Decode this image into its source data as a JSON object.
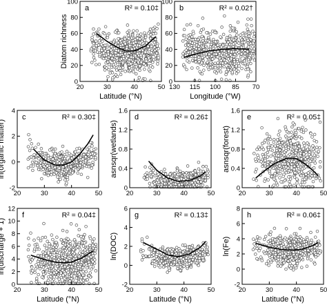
{
  "chart_data": [
    {
      "type": "scatter",
      "panel": "a",
      "r2": "R² = 0.10‡",
      "xlabel": "Latitude (°N)",
      "ylabel": "Diatom richness",
      "xlim": [
        20,
        50
      ],
      "ylim": [
        0,
        100
      ],
      "xticks": [
        20,
        30,
        40,
        50
      ],
      "yticks": [
        0,
        20,
        40,
        60,
        80,
        100
      ],
      "fit": {
        "x": [
          26,
          30,
          34,
          37,
          40,
          44,
          48
        ],
        "y": [
          60,
          50,
          42,
          38,
          38,
          44,
          56
        ]
      },
      "scatter": {
        "n": 700,
        "x_range": [
          24,
          49
        ],
        "center": 39,
        "spread": 8,
        "y_mean": [
          38,
          10
        ],
        "y_sd": 13
      }
    },
    {
      "type": "scatter",
      "panel": "b",
      "r2": "R² = 0.02†",
      "xlabel": "Longitude (°W)",
      "ylabel": "",
      "xlim": [
        130,
        70
      ],
      "ylim": [
        0,
        100
      ],
      "xticks": [
        130,
        115,
        100,
        85,
        70
      ],
      "yticks": [
        0,
        20,
        40,
        60,
        80,
        100
      ],
      "fit": {
        "x": [
          123,
          115,
          105,
          95,
          85,
          75
        ],
        "y": [
          30,
          34,
          38,
          40,
          41,
          40
        ]
      },
      "scatter": {
        "n": 600,
        "x_range": [
          124,
          71
        ],
        "center": 95,
        "spread": 20,
        "y_mean": [
          38,
          5
        ],
        "y_sd": 14
      }
    },
    {
      "type": "scatter",
      "panel": "c",
      "r2": "R² = 0.30‡",
      "xlabel": "",
      "ylabel": "ln(organic matter)",
      "xlim": [
        20,
        50
      ],
      "ylim": [
        -2,
        4
      ],
      "xticks": [
        20,
        30,
        40,
        50
      ],
      "yticks": [
        -2,
        0,
        2,
        4
      ],
      "fit": {
        "x": [
          26,
          30,
          34,
          37,
          40,
          43,
          46,
          48
        ],
        "y": [
          1.0,
          0.15,
          -0.25,
          -0.25,
          0.0,
          0.6,
          1.4,
          2.1
        ]
      },
      "scatter": {
        "n": 450,
        "x_range": [
          24,
          49
        ],
        "center": 38,
        "spread": 7,
        "y_mean": [
          0.0,
          1.0
        ],
        "y_sd": 0.55
      }
    },
    {
      "type": "scatter",
      "panel": "d",
      "r2": "R² = 0.26‡",
      "xlabel": "",
      "ylabel": "asnsqr(wetlands)",
      "xlim": [
        20,
        50
      ],
      "ylim": [
        0,
        1.6
      ],
      "xticks": [
        20,
        30,
        40,
        50
      ],
      "yticks": [
        0,
        0.4,
        0.8,
        1.2,
        1.6
      ],
      "fit": {
        "x": [
          27,
          30,
          34,
          38,
          42,
          46,
          48
        ],
        "y": [
          0.55,
          0.36,
          0.2,
          0.13,
          0.15,
          0.24,
          0.33
        ]
      },
      "scatter": {
        "n": 450,
        "x_range": [
          25,
          49
        ],
        "center": 39,
        "spread": 7,
        "y_mean": [
          0.15,
          0.2
        ],
        "y_sd": 0.12
      }
    },
    {
      "type": "scatter",
      "panel": "e",
      "r2": "R² = 0.05‡",
      "xlabel": "",
      "ylabel": "asnsqr(forest)",
      "xlim": [
        20,
        50
      ],
      "ylim": [
        0,
        1.6
      ],
      "xticks": [
        20,
        30,
        40,
        50
      ],
      "yticks": [
        0,
        0.4,
        0.8,
        1.2,
        1.6
      ],
      "fit": {
        "x": [
          25,
          28,
          32,
          36,
          38,
          40,
          43,
          46,
          48
        ],
        "y": [
          0.2,
          0.34,
          0.5,
          0.6,
          0.61,
          0.6,
          0.5,
          0.36,
          0.25
        ]
      },
      "scatter": {
        "n": 500,
        "x_range": [
          24,
          49
        ],
        "center": 38,
        "spread": 6,
        "y_mean": [
          0.6,
          -0.2
        ],
        "y_sd": 0.3
      }
    },
    {
      "type": "scatter",
      "panel": "f",
      "r2": "R² = 0.04‡",
      "xlabel": "Latitude (°N)",
      "ylabel": "ln(discharge + 1)",
      "xlim": [
        20,
        50
      ],
      "ylim": [
        0,
        12
      ],
      "xticks": [
        20,
        30,
        40,
        50
      ],
      "yticks": [
        0,
        2,
        4,
        6,
        8,
        10,
        12
      ],
      "fit": {
        "x": [
          25,
          30,
          34,
          37,
          40,
          44,
          48
        ],
        "y": [
          4.6,
          3.9,
          3.5,
          3.4,
          3.5,
          4.2,
          5.3
        ]
      },
      "scatter": {
        "n": 650,
        "x_range": [
          24,
          49
        ],
        "center": 39,
        "spread": 7,
        "y_mean": [
          3.6,
          1.0
        ],
        "y_sd": 2.1
      }
    },
    {
      "type": "scatter",
      "panel": "g",
      "r2": "R² = 0.13‡",
      "xlabel": "Latitude (°N)",
      "ylabel": "ln(DOC)",
      "xlim": [
        20,
        50
      ],
      "ylim": [
        -2,
        6
      ],
      "xticks": [
        20,
        30,
        40,
        50
      ],
      "yticks": [
        -2,
        0,
        2,
        4,
        6
      ],
      "fit": {
        "x": [
          25,
          30,
          34,
          38,
          42,
          46,
          48
        ],
        "y": [
          2.4,
          1.7,
          1.1,
          0.9,
          1.2,
          1.9,
          2.5
        ]
      },
      "scatter": {
        "n": 450,
        "x_range": [
          24,
          49
        ],
        "center": 39,
        "spread": 7,
        "y_mean": [
          1.0,
          0.8
        ],
        "y_sd": 0.55
      }
    },
    {
      "type": "scatter",
      "panel": "h",
      "r2": "R² = 0.06‡",
      "xlabel": "Latitude (°N)",
      "ylabel": "ln(Fe)",
      "xlim": [
        20,
        50
      ],
      "ylim": [
        -2,
        8
      ],
      "xticks": [
        20,
        30,
        40,
        50
      ],
      "yticks": [
        -2,
        0,
        2,
        4,
        6,
        8
      ],
      "fit": {
        "x": [
          25,
          30,
          34,
          38,
          42,
          46,
          48
        ],
        "y": [
          3.4,
          2.9,
          2.6,
          2.5,
          2.6,
          3.1,
          3.5
        ]
      },
      "scatter": {
        "n": 500,
        "x_range": [
          24,
          49
        ],
        "center": 39,
        "spread": 7,
        "y_mean": [
          2.6,
          0.6
        ],
        "y_sd": 1.0
      }
    }
  ]
}
